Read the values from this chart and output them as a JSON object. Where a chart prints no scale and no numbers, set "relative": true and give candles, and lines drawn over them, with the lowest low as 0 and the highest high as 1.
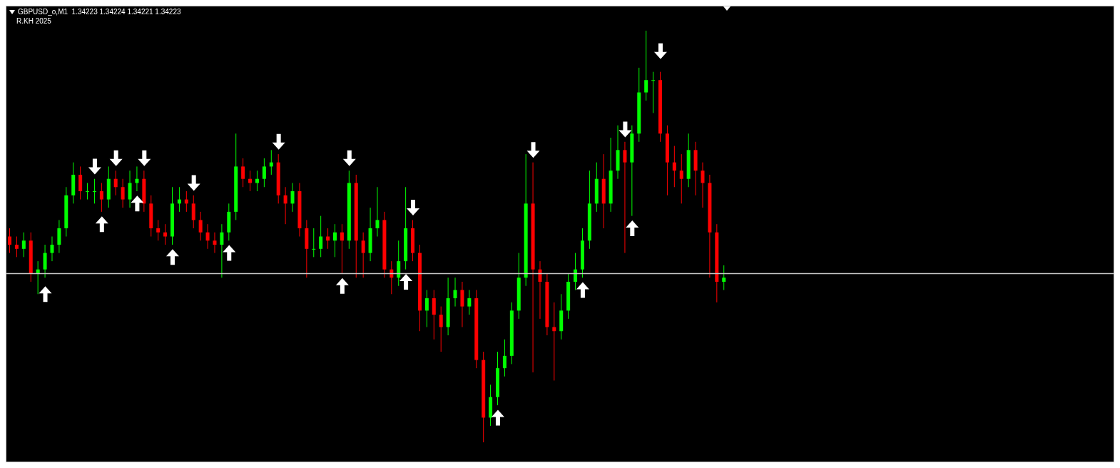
{
  "chart_data": {
    "type": "candlestick",
    "title": "GBPUSD_o,M1  1.34223 1.34224 1.34221 1.34223",
    "subtitle": "R.KH 2025",
    "relative": true,
    "legend": false,
    "grid": false,
    "categories": [
      null,
      null,
      null,
      null,
      null,
      null,
      null,
      null,
      null,
      null,
      null,
      null,
      null,
      null,
      null,
      null,
      null,
      null,
      null,
      null,
      null,
      null,
      null,
      null,
      null,
      null,
      null,
      null,
      null,
      null,
      null,
      null,
      null,
      null,
      null,
      null,
      null,
      null,
      null,
      null,
      null,
      null,
      null,
      null,
      null,
      null,
      null,
      null,
      null,
      null,
      null,
      null,
      null,
      null,
      null,
      null,
      null,
      null,
      null,
      null,
      null,
      null,
      null,
      null,
      null,
      null,
      null,
      null,
      null,
      null,
      null,
      null,
      null,
      null,
      null,
      null,
      null,
      null,
      null,
      null,
      null,
      null,
      null,
      null,
      null,
      null,
      null,
      null,
      null,
      null,
      null,
      null,
      null,
      null,
      null,
      null,
      null,
      null,
      null,
      null,
      null,
      null
    ],
    "ohlc": [
      [
        0.5,
        0.52,
        0.46,
        0.48
      ],
      [
        0.48,
        0.5,
        0.45,
        0.47
      ],
      [
        0.47,
        0.51,
        0.45,
        0.49
      ],
      [
        0.49,
        0.51,
        0.39,
        0.41
      ],
      [
        0.41,
        0.44,
        0.36,
        0.42
      ],
      [
        0.42,
        0.48,
        0.4,
        0.46
      ],
      [
        0.46,
        0.5,
        0.44,
        0.48
      ],
      [
        0.48,
        0.54,
        0.46,
        0.52
      ],
      [
        0.52,
        0.62,
        0.5,
        0.6
      ],
      [
        0.6,
        0.68,
        0.58,
        0.65
      ],
      [
        0.65,
        0.67,
        0.59,
        0.61
      ],
      [
        0.61,
        0.63,
        0.59,
        0.61
      ],
      [
        0.61,
        0.64,
        0.58,
        0.61
      ],
      [
        0.61,
        0.63,
        0.56,
        0.59
      ],
      [
        0.59,
        0.67,
        0.57,
        0.64
      ],
      [
        0.64,
        0.66,
        0.6,
        0.62
      ],
      [
        0.62,
        0.64,
        0.57,
        0.59
      ],
      [
        0.59,
        0.66,
        0.57,
        0.63
      ],
      [
        0.63,
        0.67,
        0.61,
        0.64
      ],
      [
        0.64,
        0.66,
        0.56,
        0.58
      ],
      [
        0.58,
        0.6,
        0.5,
        0.52
      ],
      [
        0.52,
        0.54,
        0.49,
        0.51
      ],
      [
        0.51,
        0.53,
        0.48,
        0.5
      ],
      [
        0.5,
        0.62,
        0.48,
        0.58
      ],
      [
        0.58,
        0.62,
        0.56,
        0.59
      ],
      [
        0.59,
        0.61,
        0.56,
        0.58
      ],
      [
        0.58,
        0.6,
        0.52,
        0.54
      ],
      [
        0.54,
        0.56,
        0.49,
        0.51
      ],
      [
        0.51,
        0.53,
        0.47,
        0.49
      ],
      [
        0.49,
        0.51,
        0.46,
        0.48
      ],
      [
        0.48,
        0.53,
        0.4,
        0.51
      ],
      [
        0.51,
        0.58,
        0.49,
        0.56
      ],
      [
        0.56,
        0.75,
        0.54,
        0.67
      ],
      [
        0.67,
        0.69,
        0.62,
        0.64
      ],
      [
        0.64,
        0.66,
        0.61,
        0.63
      ],
      [
        0.63,
        0.66,
        0.61,
        0.64
      ],
      [
        0.64,
        0.69,
        0.62,
        0.67
      ],
      [
        0.67,
        0.71,
        0.65,
        0.68
      ],
      [
        0.68,
        0.7,
        0.58,
        0.6
      ],
      [
        0.6,
        0.62,
        0.53,
        0.58
      ],
      [
        0.58,
        0.63,
        0.56,
        0.61
      ],
      [
        0.61,
        0.63,
        0.5,
        0.52
      ],
      [
        0.52,
        0.54,
        0.4,
        0.47
      ],
      [
        0.47,
        0.52,
        0.45,
        0.47
      ],
      [
        0.47,
        0.55,
        0.45,
        0.5
      ],
      [
        0.5,
        0.52,
        0.47,
        0.49
      ],
      [
        0.49,
        0.53,
        0.45,
        0.51
      ],
      [
        0.51,
        0.53,
        0.41,
        0.49
      ],
      [
        0.49,
        0.66,
        0.47,
        0.63
      ],
      [
        0.63,
        0.65,
        0.4,
        0.49
      ],
      [
        0.49,
        0.51,
        0.4,
        0.46
      ],
      [
        0.46,
        0.57,
        0.44,
        0.52
      ],
      [
        0.52,
        0.62,
        0.5,
        0.54
      ],
      [
        0.54,
        0.56,
        0.4,
        0.42
      ],
      [
        0.42,
        0.44,
        0.36,
        0.4
      ],
      [
        0.4,
        0.49,
        0.38,
        0.44
      ],
      [
        0.44,
        0.62,
        0.42,
        0.52
      ],
      [
        0.52,
        0.54,
        0.44,
        0.46
      ],
      [
        0.46,
        0.48,
        0.27,
        0.32
      ],
      [
        0.32,
        0.37,
        0.28,
        0.35
      ],
      [
        0.35,
        0.37,
        0.25,
        0.31
      ],
      [
        0.31,
        0.33,
        0.22,
        0.28
      ],
      [
        0.28,
        0.4,
        0.26,
        0.35
      ],
      [
        0.35,
        0.4,
        0.33,
        0.37
      ],
      [
        0.37,
        0.39,
        0.28,
        0.33
      ],
      [
        0.33,
        0.37,
        0.31,
        0.35
      ],
      [
        0.35,
        0.37,
        0.18,
        0.2
      ],
      [
        0.2,
        0.22,
        0.0,
        0.06
      ],
      [
        0.06,
        0.14,
        0.04,
        0.11
      ],
      [
        0.11,
        0.22,
        0.09,
        0.18
      ],
      [
        0.18,
        0.25,
        0.16,
        0.21
      ],
      [
        0.21,
        0.34,
        0.19,
        0.32
      ],
      [
        0.32,
        0.46,
        0.3,
        0.4
      ],
      [
        0.4,
        0.7,
        0.38,
        0.58
      ],
      [
        0.58,
        0.68,
        0.17,
        0.42
      ],
      [
        0.42,
        0.44,
        0.3,
        0.39
      ],
      [
        0.39,
        0.41,
        0.26,
        0.28
      ],
      [
        0.28,
        0.34,
        0.15,
        0.27
      ],
      [
        0.27,
        0.36,
        0.25,
        0.32
      ],
      [
        0.32,
        0.41,
        0.3,
        0.39
      ],
      [
        0.39,
        0.46,
        0.37,
        0.42
      ],
      [
        0.42,
        0.52,
        0.4,
        0.49
      ],
      [
        0.49,
        0.66,
        0.47,
        0.58
      ],
      [
        0.58,
        0.68,
        0.56,
        0.64
      ],
      [
        0.64,
        0.7,
        0.52,
        0.58
      ],
      [
        0.58,
        0.74,
        0.56,
        0.66
      ],
      [
        0.66,
        0.77,
        0.64,
        0.71
      ],
      [
        0.71,
        0.73,
        0.46,
        0.68
      ],
      [
        0.68,
        0.77,
        0.55,
        0.75
      ],
      [
        0.75,
        0.91,
        0.73,
        0.85
      ],
      [
        0.85,
        1.0,
        0.83,
        0.88
      ],
      [
        0.88,
        0.9,
        0.8,
        0.88
      ],
      [
        0.88,
        0.9,
        0.73,
        0.75
      ],
      [
        0.75,
        0.77,
        0.6,
        0.68
      ],
      [
        0.68,
        0.72,
        0.62,
        0.66
      ],
      [
        0.66,
        0.7,
        0.58,
        0.64
      ],
      [
        0.64,
        0.75,
        0.62,
        0.71
      ],
      [
        0.71,
        0.73,
        0.6,
        0.66
      ],
      [
        0.66,
        0.68,
        0.57,
        0.63
      ],
      [
        0.63,
        0.65,
        0.4,
        0.51
      ],
      [
        0.51,
        0.53,
        0.34,
        0.39
      ],
      [
        0.39,
        0.43,
        0.37,
        0.4
      ]
    ],
    "colors": [
      "#ff0000",
      "#ff0000",
      "#00ff00",
      "#ff0000",
      "#00ff00",
      "#00ff00",
      "#00ff00",
      "#00ff00",
      "#00ff00",
      "#00ff00",
      "#ff0000",
      "#00ff00",
      "#00ff00",
      "#ff0000",
      "#00ff00",
      "#ff0000",
      "#ff0000",
      "#00ff00",
      "#00ff00",
      "#ff0000",
      "#ff0000",
      "#ff0000",
      "#ff0000",
      "#00ff00",
      "#00ff00",
      "#ff0000",
      "#ff0000",
      "#ff0000",
      "#ff0000",
      "#ff0000",
      "#00ff00",
      "#00ff00",
      "#00ff00",
      "#ff0000",
      "#ff0000",
      "#00ff00",
      "#00ff00",
      "#00ff00",
      "#ff0000",
      "#ff0000",
      "#00ff00",
      "#ff0000",
      "#ff0000",
      "#00ff00",
      "#00ff00",
      "#ff0000",
      "#00ff00",
      "#ff0000",
      "#00ff00",
      "#ff0000",
      "#ff0000",
      "#00ff00",
      "#00ff00",
      "#ff0000",
      "#ff0000",
      "#00ff00",
      "#00ff00",
      "#ff0000",
      "#ff0000",
      "#00ff00",
      "#ff0000",
      "#ff0000",
      "#00ff00",
      "#00ff00",
      "#ff0000",
      "#00ff00",
      "#ff0000",
      "#ff0000",
      "#00ff00",
      "#00ff00",
      "#00ff00",
      "#00ff00",
      "#00ff00",
      "#00ff00",
      "#ff0000",
      "#ff0000",
      "#ff0000",
      "#ff0000",
      "#00ff00",
      "#00ff00",
      "#00ff00",
      "#00ff00",
      "#00ff00",
      "#00ff00",
      "#ff0000",
      "#00ff00",
      "#00ff00",
      "#ff0000",
      "#00ff00",
      "#00ff00",
      "#00ff00",
      "#00ff00",
      "#ff0000",
      "#ff0000",
      "#ff0000",
      "#ff0000",
      "#00ff00",
      "#ff0000",
      "#ff0000",
      "#ff0000",
      "#ff0000",
      "#00ff00"
    ],
    "series": [
      {
        "type": "scatter",
        "color": "#ffffff",
        "values": [
          null,
          null,
          null,
          null,
          null,
          0.36,
          null,
          null,
          null,
          null,
          null,
          null,
          null,
          0.53,
          null,
          null,
          null,
          null,
          0.58,
          null,
          null,
          null,
          null,
          0.45,
          null,
          null,
          null,
          null,
          null,
          null,
          null,
          0.46,
          null,
          null,
          null,
          null,
          null,
          null,
          null,
          null,
          null,
          null,
          null,
          null,
          null,
          null,
          null,
          0.38,
          null,
          null,
          null,
          null,
          null,
          null,
          null,
          null,
          0.39,
          null,
          null,
          null,
          null,
          null,
          null,
          null,
          null,
          null,
          null,
          null,
          null,
          0.06,
          null,
          null,
          null,
          null,
          null,
          null,
          null,
          null,
          null,
          null,
          null,
          0.37,
          null,
          null,
          null,
          null,
          null,
          null,
          0.52,
          null,
          null,
          null,
          null,
          null,
          null,
          null,
          null,
          null,
          null,
          null,
          null,
          null
        ]
      },
      {
        "type": "scatter",
        "color": "#ffffff",
        "values": [
          null,
          null,
          null,
          null,
          null,
          null,
          null,
          null,
          null,
          null,
          null,
          null,
          0.67,
          null,
          null,
          0.69,
          null,
          null,
          null,
          0.69,
          null,
          null,
          null,
          null,
          null,
          null,
          0.63,
          null,
          null,
          null,
          null,
          null,
          null,
          null,
          null,
          null,
          null,
          null,
          0.73,
          null,
          null,
          null,
          null,
          null,
          null,
          null,
          null,
          null,
          0.69,
          null,
          null,
          null,
          null,
          null,
          null,
          null,
          null,
          0.57,
          null,
          null,
          null,
          null,
          null,
          null,
          null,
          null,
          null,
          null,
          null,
          null,
          null,
          null,
          null,
          null,
          0.71,
          null,
          null,
          null,
          null,
          null,
          null,
          null,
          null,
          null,
          null,
          null,
          null,
          0.76,
          null,
          null,
          null,
          null,
          0.95,
          null,
          null,
          null,
          null,
          null,
          null,
          null,
          null,
          null
        ]
      }
    ],
    "ref_lines": [
      {
        "axis": "y",
        "value": 0.41,
        "color": "#c8c8c8"
      }
    ]
  }
}
